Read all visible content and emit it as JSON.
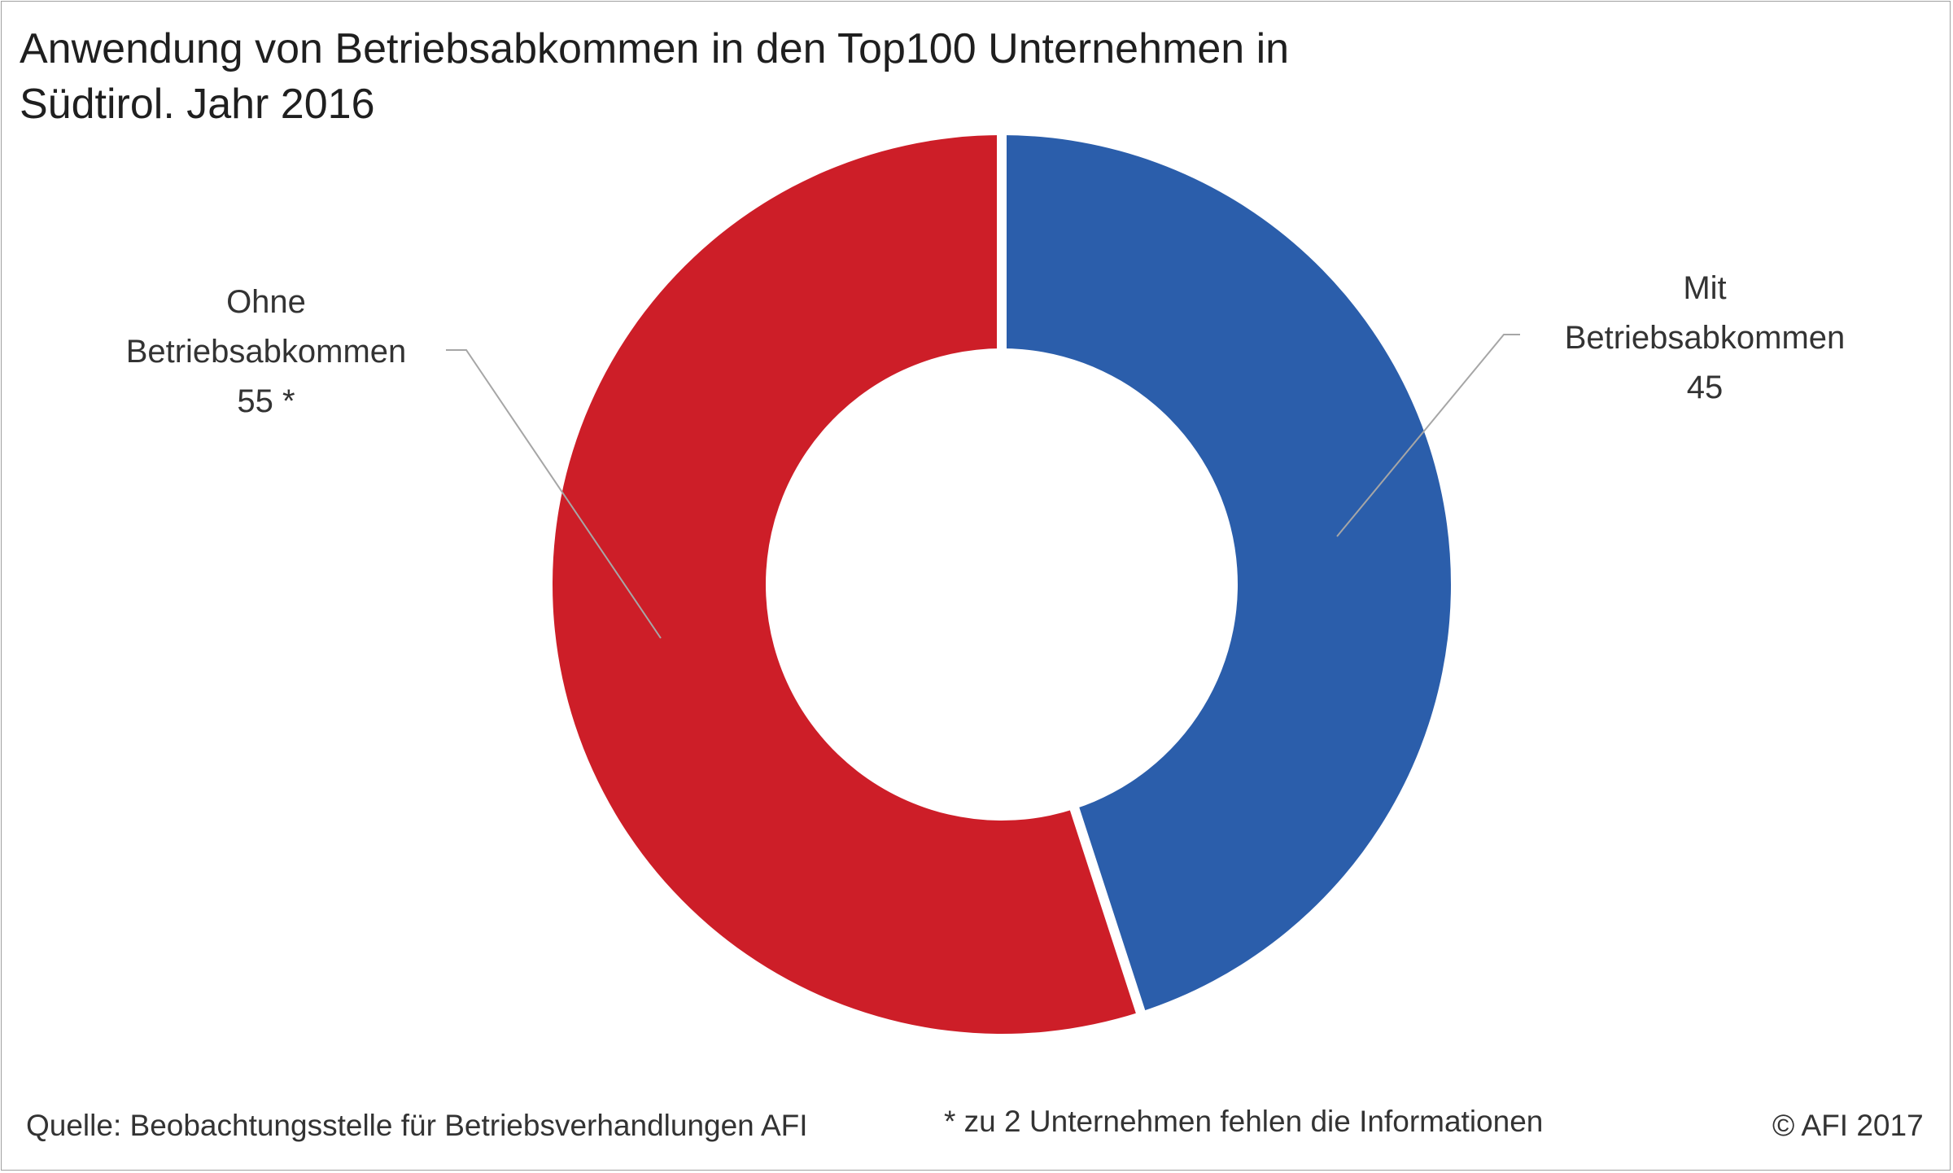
{
  "title": {
    "line1": "Anwendung von Betriebsabkommen in den Top100 Unternehmen in",
    "line2": "Südtirol. Jahr 2016"
  },
  "chart_data": {
    "type": "pie",
    "variant": "donut",
    "title": "Anwendung von Betriebsabkommen in den Top100 Unternehmen in Südtirol. Jahr 2016",
    "categories": [
      "Mit Betriebsabkommen",
      "Ohne Betriebsabkommen"
    ],
    "values": [
      45,
      55
    ],
    "series": [
      {
        "name": "Mit Betriebsabkommen",
        "value": 45,
        "color": "#2b5eab"
      },
      {
        "name": "Ohne Betriebsabkommen",
        "value": 55,
        "color": "#cd1e28"
      }
    ],
    "start_angle_deg": 0,
    "direction": "clockwise",
    "legend": "none",
    "data_labels": {
      "mit": {
        "line1": "Mit",
        "line2": "Betriebsabkommen",
        "line3": "45"
      },
      "ohne": {
        "line1": "Ohne",
        "line2": "Betriebsabkommen",
        "line3": "55 *"
      }
    }
  },
  "colors": {
    "mit": "#2b5eab",
    "ohne": "#cd1e28",
    "leader": "#a6a6a6",
    "separator": "#ffffff"
  },
  "footer": {
    "source": "Quelle: Beobachtungsstelle für Betriebsverhandlungen AFI",
    "note": "* zu 2 Unternehmen fehlen die Informationen",
    "copyright": "© AFI 2017"
  }
}
